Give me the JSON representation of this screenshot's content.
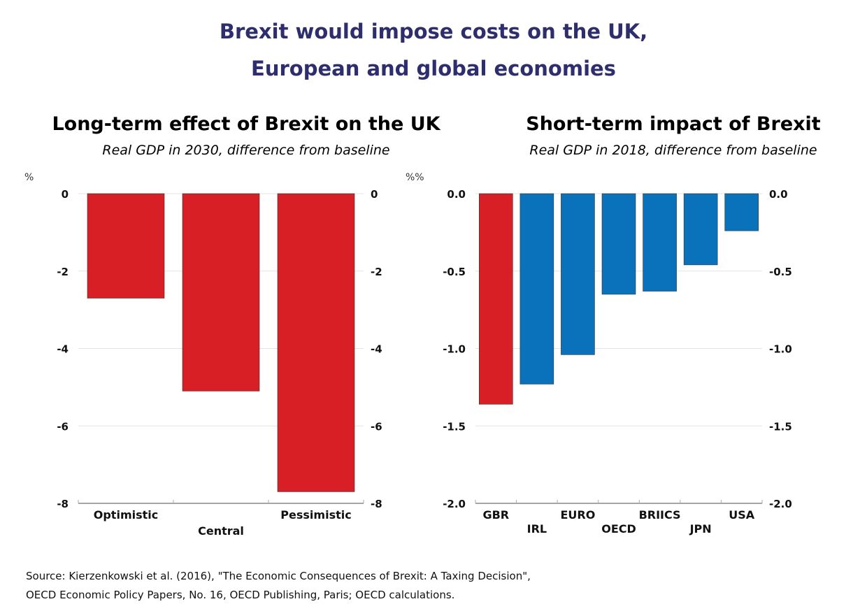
{
  "title_lines": [
    "Brexit would impose costs on the UK,",
    "European and global economies"
  ],
  "source_lines": [
    "Source: Kierzenkowski et al. (2016), \"The Economic Consequences of Brexit: A Taxing Decision\",",
    "OECD Economic Policy Papers, No. 16, OECD Publishing, Paris; OECD calculations."
  ],
  "colors": {
    "uk": "#d91f26",
    "other": "#0a72ba",
    "title": "#2e2d6e"
  },
  "chart_data": [
    {
      "type": "bar",
      "title": "Long-term effect of Brexit on the UK",
      "subtitle": "Real GDP in 2030, difference from baseline",
      "ylabel": "%",
      "categories": [
        "Optimistic",
        "Central",
        "Pessimistic"
      ],
      "values": [
        -2.7,
        -5.1,
        -7.7
      ],
      "bar_colors": [
        "#d91f26",
        "#d91f26",
        "#d91f26"
      ],
      "ylim": [
        -8,
        0
      ],
      "yticks": [
        0,
        -2,
        -4,
        -6,
        -8
      ],
      "ytick_labels": [
        "0",
        "-2",
        "-4",
        "-6",
        "-8"
      ],
      "grid": true,
      "dual_y_axis": true
    },
    {
      "type": "bar",
      "title": "Short-term impact of Brexit",
      "subtitle": "Real GDP in 2018, difference from baseline",
      "ylabel": "%%",
      "categories": [
        "GBR",
        "IRL",
        "EURO",
        "OECD",
        "BRIICS",
        "JPN",
        "USA"
      ],
      "values": [
        -1.36,
        -1.23,
        -1.04,
        -0.65,
        -0.63,
        -0.46,
        -0.24
      ],
      "bar_colors": [
        "#d91f26",
        "#0a72ba",
        "#0a72ba",
        "#0a72ba",
        "#0a72ba",
        "#0a72ba",
        "#0a72ba"
      ],
      "ylim": [
        -2.0,
        0.0
      ],
      "yticks": [
        0.0,
        -0.5,
        -1.0,
        -1.5,
        -2.0
      ],
      "ytick_labels": [
        "0.0",
        "-0.5",
        "-1.0",
        "-1.5",
        "-2.0"
      ],
      "grid": true,
      "dual_y_axis": true
    }
  ]
}
